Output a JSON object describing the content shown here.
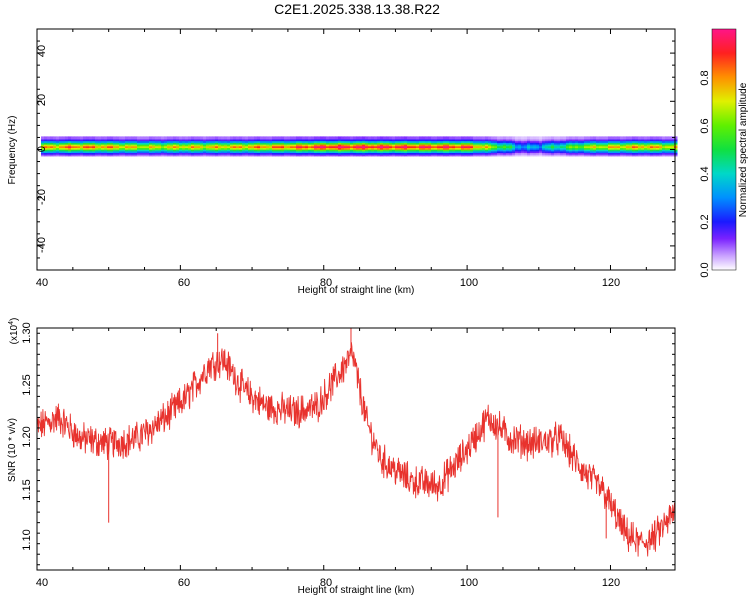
{
  "title": "C2E1.2025.338.13.38.R22",
  "chart_data": [
    {
      "type": "heatmap",
      "name": "spectrogram",
      "xlabel": "Height of straight line (km)",
      "ylabel": "Frequency (Hz)",
      "xlim": [
        40,
        129
      ],
      "ylim": [
        -50,
        50
      ],
      "x_ticks": [
        "40",
        "60",
        "80",
        "100",
        "120"
      ],
      "y_ticks": [
        "40",
        "20",
        "0",
        "-20",
        "-40"
      ],
      "band_center_hz": 1.5,
      "band_profile": [
        {
          "x": 40,
          "amp": 0.75
        },
        {
          "x": 45,
          "amp": 0.85
        },
        {
          "x": 50,
          "amp": 0.8
        },
        {
          "x": 55,
          "amp": 0.7
        },
        {
          "x": 60,
          "amp": 0.75
        },
        {
          "x": 65,
          "amp": 0.75
        },
        {
          "x": 70,
          "amp": 0.8
        },
        {
          "x": 75,
          "amp": 0.85
        },
        {
          "x": 80,
          "amp": 0.95
        },
        {
          "x": 85,
          "amp": 0.95
        },
        {
          "x": 90,
          "amp": 0.93
        },
        {
          "x": 95,
          "amp": 0.92
        },
        {
          "x": 100,
          "amp": 0.9
        },
        {
          "x": 104,
          "amp": 0.6
        },
        {
          "x": 108,
          "amp": 0.3
        },
        {
          "x": 112,
          "amp": 0.45
        },
        {
          "x": 116,
          "amp": 0.65
        },
        {
          "x": 120,
          "amp": 0.75
        },
        {
          "x": 125,
          "amp": 0.8
        },
        {
          "x": 129,
          "amp": 0.7
        }
      ],
      "colorbar": {
        "label": "Normalized spectral amplitude",
        "range": [
          0,
          1
        ],
        "ticks": [
          "0.0",
          "0.2",
          "0.4",
          "0.6",
          "0.8"
        ]
      }
    },
    {
      "type": "line",
      "name": "snr",
      "xlabel": "Height of straight line (km)",
      "ylabel": "SNR (10 * v/v)",
      "multiplier_label": "(x10",
      "multiplier_exp": "4",
      "xlim": [
        40,
        129
      ],
      "ylim": [
        1.07,
        1.3
      ],
      "x_ticks": [
        "40",
        "60",
        "80",
        "100",
        "120"
      ],
      "y_ticks": [
        "1.30",
        "1.25",
        "1.20",
        "1.15",
        "1.10"
      ],
      "color": "#e8322d",
      "noise_amplitude": 0.013,
      "trend": [
        {
          "x": 40,
          "y": 1.205
        },
        {
          "x": 43,
          "y": 1.215
        },
        {
          "x": 46,
          "y": 1.195
        },
        {
          "x": 50,
          "y": 1.19
        },
        {
          "x": 54,
          "y": 1.195
        },
        {
          "x": 58,
          "y": 1.215
        },
        {
          "x": 61,
          "y": 1.235
        },
        {
          "x": 64,
          "y": 1.265
        },
        {
          "x": 66,
          "y": 1.27
        },
        {
          "x": 69,
          "y": 1.24
        },
        {
          "x": 72,
          "y": 1.225
        },
        {
          "x": 76,
          "y": 1.22
        },
        {
          "x": 79,
          "y": 1.225
        },
        {
          "x": 82,
          "y": 1.255
        },
        {
          "x": 84,
          "y": 1.275
        },
        {
          "x": 86,
          "y": 1.21
        },
        {
          "x": 88,
          "y": 1.175
        },
        {
          "x": 92,
          "y": 1.155
        },
        {
          "x": 96,
          "y": 1.15
        },
        {
          "x": 99,
          "y": 1.175
        },
        {
          "x": 103,
          "y": 1.215
        },
        {
          "x": 106,
          "y": 1.195
        },
        {
          "x": 109,
          "y": 1.19
        },
        {
          "x": 113,
          "y": 1.195
        },
        {
          "x": 116,
          "y": 1.165
        },
        {
          "x": 119,
          "y": 1.145
        },
        {
          "x": 122,
          "y": 1.105
        },
        {
          "x": 124,
          "y": 1.095
        },
        {
          "x": 126,
          "y": 1.1
        },
        {
          "x": 129,
          "y": 1.125
        }
      ],
      "spikes": [
        {
          "x": 50.0,
          "y": 1.115
        },
        {
          "x": 65.2,
          "y": 1.295
        },
        {
          "x": 83.8,
          "y": 1.3
        },
        {
          "x": 104.3,
          "y": 1.12
        },
        {
          "x": 119.4,
          "y": 1.1
        }
      ]
    }
  ]
}
